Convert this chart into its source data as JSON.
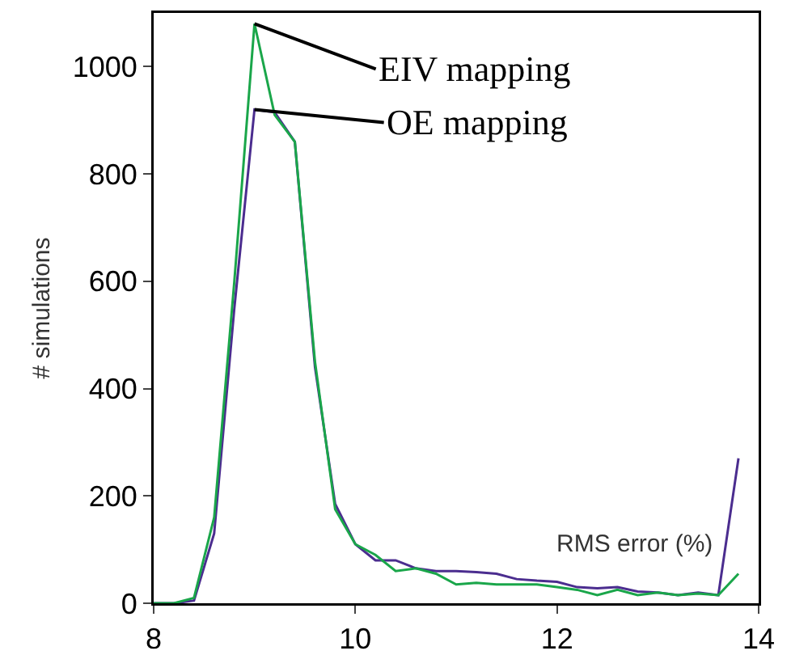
{
  "chart_data": {
    "type": "line",
    "xlabel": "RMS error (%)",
    "ylabel": "# simulations",
    "x": [
      8.0,
      8.2,
      8.4,
      8.6,
      8.8,
      9.0,
      9.2,
      9.4,
      9.6,
      9.8,
      10.0,
      10.2,
      10.4,
      10.6,
      10.8,
      11.0,
      11.2,
      11.4,
      11.6,
      11.8,
      12.0,
      12.2,
      12.4,
      12.6,
      12.8,
      13.0,
      13.2,
      13.4,
      13.6,
      13.8
    ],
    "series": [
      {
        "name": "OE mapping",
        "color": "#4b2d8f",
        "values": [
          0,
          0,
          5,
          130,
          550,
          920,
          915,
          860,
          440,
          185,
          110,
          80,
          80,
          65,
          60,
          60,
          58,
          55,
          45,
          42,
          40,
          30,
          28,
          30,
          22,
          20,
          15,
          20,
          15,
          270
        ]
      },
      {
        "name": "EIV mapping",
        "color": "#1aa64a",
        "values": [
          0,
          0,
          10,
          160,
          600,
          1080,
          910,
          860,
          450,
          175,
          110,
          90,
          60,
          65,
          55,
          35,
          38,
          35,
          35,
          35,
          30,
          25,
          15,
          25,
          15,
          20,
          15,
          18,
          15,
          55
        ]
      }
    ],
    "xlim": [
      8,
      14
    ],
    "xticks": [
      8,
      10,
      12,
      14
    ],
    "ylim": [
      0,
      1100
    ],
    "yticks": [
      0,
      200,
      400,
      600,
      800,
      1000
    ],
    "grid": false,
    "legend": false,
    "marker": "none",
    "line_style": "solid"
  }
}
